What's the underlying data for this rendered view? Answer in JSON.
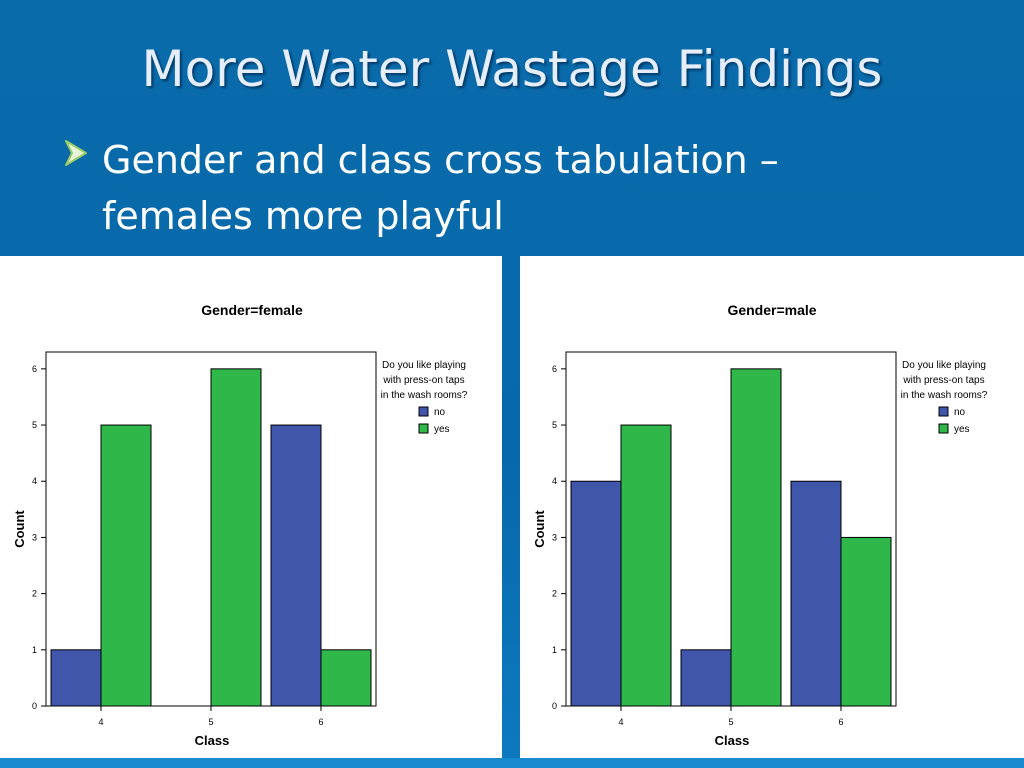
{
  "slide": {
    "title": "More Water Wastage Findings",
    "bullet": {
      "icon": "arrow-bullet-icon",
      "lines": [
        "Gender and class cross tabulation –",
        "females more playful"
      ]
    }
  },
  "colors": {
    "no": "#3f56aa",
    "yes": "#2fb74a",
    "background": "#0b6aa8"
  },
  "chart_data": [
    {
      "type": "bar",
      "title": "Gender=female",
      "xlabel": "Class",
      "ylabel": "Count",
      "categories": [
        "4",
        "5",
        "6"
      ],
      "ylim": [
        0,
        6.3
      ],
      "yticks": [
        "0",
        "1",
        "2",
        "3",
        "4",
        "5",
        "6"
      ],
      "legend_title": [
        "Do you like playing",
        "with press-on taps",
        "in the wash rooms?"
      ],
      "legend_position": "top-right",
      "series": [
        {
          "name": "no",
          "values": [
            1,
            0,
            5
          ]
        },
        {
          "name": "yes",
          "values": [
            5,
            6,
            1
          ]
        }
      ]
    },
    {
      "type": "bar",
      "title": "Gender=male",
      "xlabel": "Class",
      "ylabel": "Count",
      "categories": [
        "4",
        "5",
        "6"
      ],
      "ylim": [
        0,
        6.3
      ],
      "yticks": [
        "0",
        "1",
        "2",
        "3",
        "4",
        "5",
        "6"
      ],
      "legend_title": [
        "Do you like playing",
        "with press-on taps",
        "in the wash rooms?"
      ],
      "legend_position": "top-right",
      "series": [
        {
          "name": "no",
          "values": [
            4,
            1,
            4
          ]
        },
        {
          "name": "yes",
          "values": [
            5,
            6,
            3
          ]
        }
      ]
    }
  ]
}
